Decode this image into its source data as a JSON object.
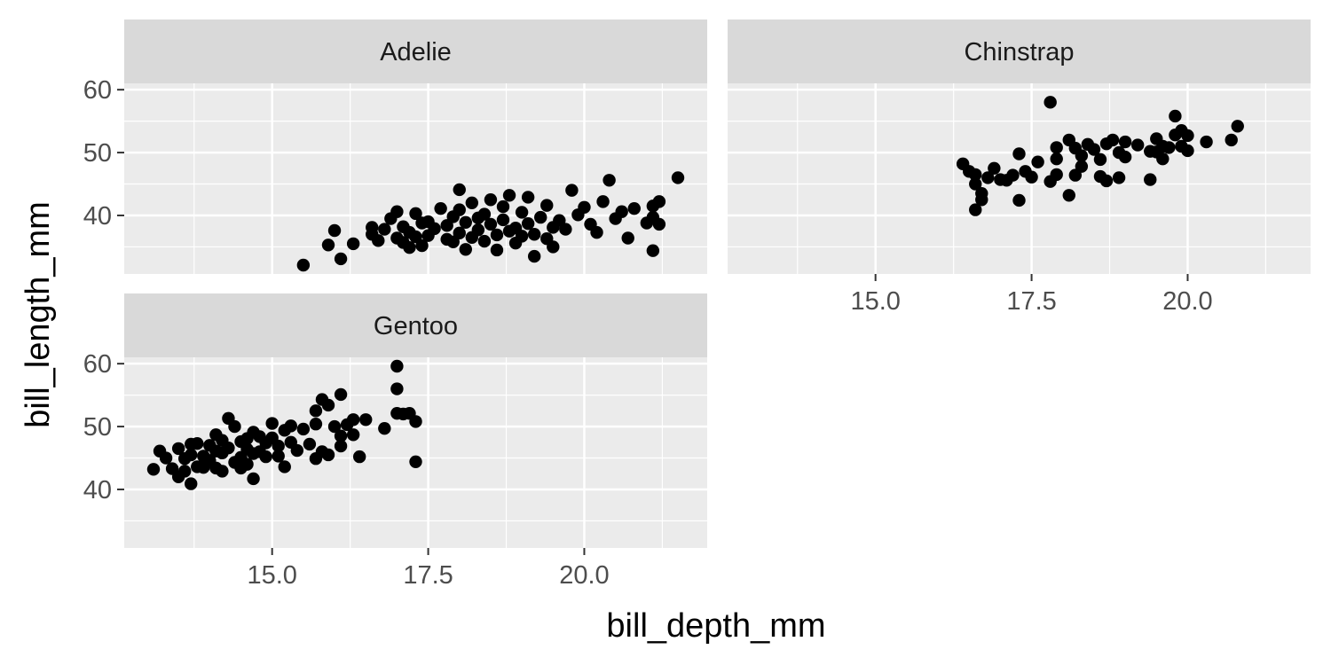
{
  "chart_data": {
    "type": "scatter",
    "facet_by": "species",
    "xlabel": "bill_depth_mm",
    "ylabel": "bill_length_mm",
    "xlim": [
      13.1,
      21.5
    ],
    "ylim": [
      32.1,
      59.6
    ],
    "x_ticks": [
      15.0,
      17.5,
      20.0
    ],
    "x_tick_labels": [
      "15.0",
      "17.5",
      "20.0"
    ],
    "y_ticks": [
      40,
      50,
      60
    ],
    "y_tick_labels": [
      "40",
      "50",
      "60"
    ],
    "grid": true,
    "point_color": "#000000",
    "panel_background": "#ebebeb",
    "strip_background": "#d9d9d9",
    "panels": [
      {
        "label": "Adelie",
        "points": [
          [
            15.5,
            32.1
          ],
          [
            15.9,
            35.3
          ],
          [
            16.0,
            37.6
          ],
          [
            16.1,
            33.1
          ],
          [
            16.3,
            35.5
          ],
          [
            16.6,
            37.0
          ],
          [
            16.6,
            38.1
          ],
          [
            16.7,
            36.0
          ],
          [
            16.8,
            37.8
          ],
          [
            16.9,
            39.5
          ],
          [
            17.0,
            40.6
          ],
          [
            17.0,
            36.4
          ],
          [
            17.1,
            38.2
          ],
          [
            17.1,
            35.7
          ],
          [
            17.2,
            37.3
          ],
          [
            17.2,
            34.9
          ],
          [
            17.3,
            36.6
          ],
          [
            17.3,
            40.3
          ],
          [
            17.4,
            38.8
          ],
          [
            17.4,
            35.2
          ],
          [
            17.5,
            39.0
          ],
          [
            17.5,
            36.8
          ],
          [
            17.6,
            37.9
          ],
          [
            17.7,
            41.1
          ],
          [
            17.8,
            38.4
          ],
          [
            17.8,
            36.2
          ],
          [
            17.9,
            39.8
          ],
          [
            17.9,
            35.8
          ],
          [
            18.0,
            40.9
          ],
          [
            18.0,
            37.2
          ],
          [
            18.0,
            44.1
          ],
          [
            18.1,
            38.9
          ],
          [
            18.1,
            34.6
          ],
          [
            18.2,
            42.0
          ],
          [
            18.2,
            36.5
          ],
          [
            18.3,
            39.6
          ],
          [
            18.3,
            37.7
          ],
          [
            18.4,
            40.2
          ],
          [
            18.4,
            35.9
          ],
          [
            18.5,
            38.6
          ],
          [
            18.5,
            42.5
          ],
          [
            18.6,
            36.9
          ],
          [
            18.6,
            34.5
          ],
          [
            18.7,
            39.3
          ],
          [
            18.7,
            41.4
          ],
          [
            18.8,
            37.5
          ],
          [
            18.8,
            43.2
          ],
          [
            18.9,
            38.0
          ],
          [
            18.9,
            35.6
          ],
          [
            19.0,
            40.5
          ],
          [
            19.0,
            36.7
          ],
          [
            19.1,
            42.9
          ],
          [
            19.1,
            38.7
          ],
          [
            19.2,
            37.0
          ],
          [
            19.2,
            33.5
          ],
          [
            19.3,
            39.7
          ],
          [
            19.4,
            41.6
          ],
          [
            19.4,
            36.3
          ],
          [
            19.5,
            38.1
          ],
          [
            19.5,
            35.0
          ],
          [
            19.6,
            39.2
          ],
          [
            19.7,
            37.8
          ],
          [
            19.8,
            44.0
          ],
          [
            19.9,
            40.1
          ],
          [
            20.0,
            41.3
          ],
          [
            20.1,
            38.6
          ],
          [
            20.2,
            37.3
          ],
          [
            20.3,
            42.2
          ],
          [
            20.4,
            45.6
          ],
          [
            20.5,
            39.5
          ],
          [
            20.6,
            40.6
          ],
          [
            20.7,
            36.4
          ],
          [
            20.8,
            41.1
          ],
          [
            21.0,
            38.8
          ],
          [
            21.1,
            39.7
          ],
          [
            21.1,
            41.5
          ],
          [
            21.1,
            34.4
          ],
          [
            21.2,
            42.2
          ],
          [
            21.2,
            38.6
          ],
          [
            21.5,
            46.0
          ]
        ]
      },
      {
        "label": "Chinstrap",
        "points": [
          [
            16.4,
            48.2
          ],
          [
            16.5,
            47.0
          ],
          [
            16.6,
            46.5
          ],
          [
            16.6,
            45.0
          ],
          [
            16.6,
            40.9
          ],
          [
            16.7,
            42.5
          ],
          [
            16.7,
            43.5
          ],
          [
            16.8,
            46.0
          ],
          [
            16.9,
            47.5
          ],
          [
            17.0,
            45.7
          ],
          [
            17.1,
            45.6
          ],
          [
            17.2,
            46.4
          ],
          [
            17.3,
            49.8
          ],
          [
            17.3,
            42.4
          ],
          [
            17.4,
            47.0
          ],
          [
            17.5,
            46.1
          ],
          [
            17.6,
            48.5
          ],
          [
            17.8,
            45.4
          ],
          [
            17.8,
            58.0
          ],
          [
            17.9,
            50.8
          ],
          [
            17.9,
            46.5
          ],
          [
            17.9,
            49.0
          ],
          [
            18.1,
            52.0
          ],
          [
            18.1,
            43.2
          ],
          [
            18.2,
            50.7
          ],
          [
            18.2,
            46.4
          ],
          [
            18.3,
            49.5
          ],
          [
            18.3,
            47.8
          ],
          [
            18.4,
            51.3
          ],
          [
            18.5,
            50.5
          ],
          [
            18.6,
            46.2
          ],
          [
            18.6,
            48.9
          ],
          [
            18.7,
            51.4
          ],
          [
            18.7,
            45.5
          ],
          [
            18.8,
            52.0
          ],
          [
            18.9,
            50.0
          ],
          [
            18.9,
            46.0
          ],
          [
            19.0,
            51.7
          ],
          [
            19.0,
            49.3
          ],
          [
            19.2,
            51.2
          ],
          [
            19.4,
            50.2
          ],
          [
            19.4,
            45.7
          ],
          [
            19.5,
            52.2
          ],
          [
            19.5,
            50.1
          ],
          [
            19.6,
            49.0
          ],
          [
            19.6,
            51.0
          ],
          [
            19.7,
            50.8
          ],
          [
            19.8,
            52.8
          ],
          [
            19.8,
            55.8
          ],
          [
            19.9,
            53.5
          ],
          [
            19.9,
            51.0
          ],
          [
            20.0,
            52.7
          ],
          [
            20.0,
            50.3
          ],
          [
            20.3,
            51.7
          ],
          [
            20.7,
            52.0
          ],
          [
            20.8,
            54.2
          ]
        ]
      },
      {
        "label": "Gentoo",
        "points": [
          [
            13.1,
            43.2
          ],
          [
            13.2,
            46.1
          ],
          [
            13.3,
            45.0
          ],
          [
            13.4,
            43.3
          ],
          [
            13.5,
            42.0
          ],
          [
            13.5,
            46.5
          ],
          [
            13.6,
            44.9
          ],
          [
            13.6,
            42.9
          ],
          [
            13.7,
            47.2
          ],
          [
            13.7,
            40.9
          ],
          [
            13.7,
            45.5
          ],
          [
            13.8,
            47.3
          ],
          [
            13.8,
            43.6
          ],
          [
            13.9,
            45.3
          ],
          [
            13.9,
            43.5
          ],
          [
            14.0,
            47.0
          ],
          [
            14.0,
            44.6
          ],
          [
            14.1,
            48.7
          ],
          [
            14.1,
            46.1
          ],
          [
            14.1,
            43.4
          ],
          [
            14.2,
            47.8
          ],
          [
            14.2,
            45.8
          ],
          [
            14.2,
            42.9
          ],
          [
            14.3,
            51.3
          ],
          [
            14.3,
            46.6
          ],
          [
            14.4,
            50.0
          ],
          [
            14.4,
            44.3
          ],
          [
            14.5,
            47.6
          ],
          [
            14.5,
            45.1
          ],
          [
            14.5,
            43.4
          ],
          [
            14.6,
            48.1
          ],
          [
            14.6,
            46.4
          ],
          [
            14.6,
            44.0
          ],
          [
            14.7,
            49.1
          ],
          [
            14.7,
            45.7
          ],
          [
            14.7,
            41.7
          ],
          [
            14.8,
            48.4
          ],
          [
            14.8,
            46.0
          ],
          [
            14.9,
            47.4
          ],
          [
            14.9,
            45.2
          ],
          [
            15.0,
            50.5
          ],
          [
            15.0,
            48.2
          ],
          [
            15.1,
            46.9
          ],
          [
            15.1,
            45.3
          ],
          [
            15.2,
            49.4
          ],
          [
            15.2,
            43.6
          ],
          [
            15.3,
            50.1
          ],
          [
            15.3,
            47.5
          ],
          [
            15.4,
            46.2
          ],
          [
            15.5,
            49.6
          ],
          [
            15.6,
            47.2
          ],
          [
            15.7,
            52.5
          ],
          [
            15.7,
            44.9
          ],
          [
            15.7,
            50.4
          ],
          [
            15.8,
            54.3
          ],
          [
            15.8,
            46.0
          ],
          [
            15.9,
            53.4
          ],
          [
            15.9,
            45.5
          ],
          [
            16.0,
            50.0
          ],
          [
            16.1,
            55.1
          ],
          [
            16.1,
            48.5
          ],
          [
            16.1,
            46.9
          ],
          [
            16.2,
            50.3
          ],
          [
            16.3,
            51.1
          ],
          [
            16.3,
            48.7
          ],
          [
            16.4,
            45.2
          ],
          [
            16.5,
            51.1
          ],
          [
            16.8,
            49.7
          ],
          [
            17.0,
            59.6
          ],
          [
            17.0,
            56.0
          ],
          [
            17.0,
            52.1
          ],
          [
            17.1,
            52.0
          ],
          [
            17.2,
            52.1
          ],
          [
            17.3,
            50.8
          ],
          [
            17.3,
            44.4
          ]
        ]
      }
    ]
  }
}
